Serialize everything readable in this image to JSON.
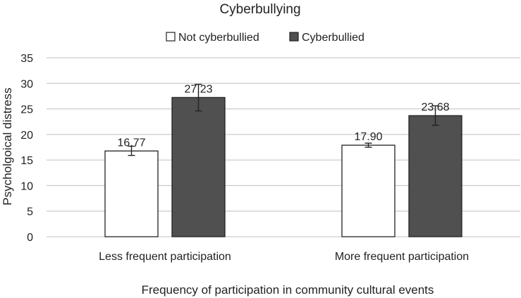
{
  "chart_data": {
    "type": "bar",
    "title": "Cyberbullying",
    "xlabel": "Frequency of participation in community cultural events",
    "ylabel": "Psycholgoical distress",
    "categories": [
      "Less frequent participation",
      "More frequent participation"
    ],
    "series": [
      {
        "name": "Not cyberbullied",
        "values": [
          16.77,
          17.9
        ],
        "labels": [
          "16.77",
          "17.90"
        ],
        "err_low": [
          15.9,
          17.5
        ],
        "err_high": [
          17.7,
          18.3
        ],
        "color": "#ffffff"
      },
      {
        "name": "Cyberbullied",
        "values": [
          27.23,
          23.68
        ],
        "labels": [
          "27.23",
          "23.68"
        ],
        "err_low": [
          24.6,
          21.8
        ],
        "err_high": [
          29.8,
          25.6
        ],
        "color": "#505050"
      }
    ],
    "ylim": [
      0,
      35
    ],
    "yticks": [
      0,
      5,
      10,
      15,
      20,
      25,
      30,
      35
    ],
    "grid": true,
    "legend_position": "top"
  }
}
